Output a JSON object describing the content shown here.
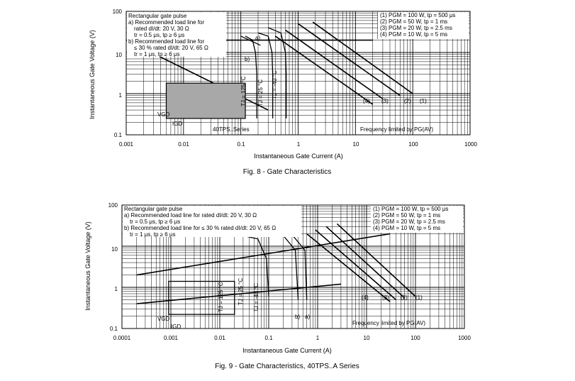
{
  "charts": [
    {
      "caption": "Fig. 8 - Gate Characteristics",
      "xlabel": "Instantaneous Gate Current (A)",
      "ylabel": "Instantaneous Gate Voltage (V)",
      "x_ticks": [
        "0.001",
        "0.01",
        "0.1",
        "1",
        "10",
        "100",
        "1000"
      ],
      "y_ticks": [
        "100",
        "10",
        "1",
        "0.1"
      ],
      "notes": [
        "Rectangular gate pulse",
        "a) Recommended load line for",
        "rated dI/dt: 20 V, 30 Ω",
        "tr = 0.5 μs, tp ≥ 6 μs",
        "b) Recommended load line for",
        "≤ 30 % rated dI/dt: 20 V, 65 Ω",
        "tr = 1 μs, tp ≥ 6 μs"
      ],
      "legend": [
        "(1) PGM = 100 W, tp = 500 μs",
        "(2) PGM = 50 W, tp = 1 ms",
        "(3) PGM = 20 W, tp = 2.5 ms",
        "(4) PGM = 10 W, tp = 5 ms"
      ],
      "labels": {
        "a": "a)",
        "b": "b)",
        "tj1": "TJ = 125 °C",
        "tj2": "TJ = 25 °C",
        "tj3": "TJ = -40 °C",
        "vgd": "VGD",
        "igd": "IGD",
        "series": "40TPS..Series",
        "freq": "Frequency limited by PG(AV)",
        "p1": "(1)",
        "p2": "(2)",
        "p3": "(3)",
        "p4": "(4)"
      }
    },
    {
      "caption": "Fig. 9 - Gate Characteristics, 40TPS..A Series",
      "xlabel": "Instantaneous Gate Current (A)",
      "ylabel": "Instantaneous Gate Voltage (V)",
      "x_ticks": [
        "0.0001",
        "0.001",
        "0.01",
        "0.1",
        "1",
        "10",
        "100",
        "1000"
      ],
      "y_ticks": [
        "100",
        "10",
        "1",
        "0.1"
      ],
      "notes": [
        "Rectangular gate pulse",
        "a) Recommended load line for rated dI/dt: 20 V, 30 Ω",
        "tr = 0.5 μs, tp ≥ 6 μs",
        "b) Recommended load line for ≤ 30 % rated dI/dt: 20 V, 65 Ω",
        "tr = 1 μs, tp ≥ 6 μs"
      ],
      "legend": [
        "(1) PGM = 100 W, tp = 500 μs",
        "(2) PGM = 50 W, tp = 1 ms",
        "(3) PGM = 20 W, tp = 2.5 ms",
        "(4) PGM = 10 W, tp = 5 ms"
      ],
      "labels": {
        "a": "a)",
        "b": "b)",
        "tj1": "TJ = 125 °C",
        "tj2": "TJ = 25 °C",
        "tj3": "TJ = -40 °C",
        "vgd": "VGD",
        "igd": "IGD",
        "freq": "Frequency limited by PG(AV)",
        "p1": "(1)",
        "p2": "(2)",
        "p3": "(3)",
        "p4": "(4)"
      }
    }
  ],
  "chart_data": [
    {
      "type": "line",
      "title": "Fig. 8 - Gate Characteristics",
      "xlabel": "Instantaneous Gate Current (A)",
      "ylabel": "Instantaneous Gate Voltage (V)",
      "xscale": "log",
      "yscale": "log",
      "xlim": [
        0.001,
        1000
      ],
      "ylim": [
        0.1,
        100
      ],
      "series": [
        {
          "name": "a)",
          "x": [
            0.001,
            20
          ],
          "y": [
            20,
            20
          ]
        },
        {
          "name": "b)",
          "x": [
            0.001,
            0.3
          ],
          "y": [
            20,
            0.4
          ]
        },
        {
          "name": "(1)",
          "x": [
            1.8,
            100
          ],
          "y": [
            55,
            1
          ]
        },
        {
          "name": "(2)",
          "x": [
            1.0,
            60
          ],
          "y": [
            50,
            0.9
          ]
        },
        {
          "name": "(3)",
          "x": [
            0.6,
            30
          ],
          "y": [
            35,
            0.75
          ]
        },
        {
          "name": "(4)",
          "x": [
            0.4,
            20
          ],
          "y": [
            25,
            0.55
          ]
        }
      ]
    },
    {
      "type": "line",
      "title": "Fig. 9 - Gate Characteristics, 40TPS..A Series",
      "xlabel": "Instantaneous Gate Current (A)",
      "ylabel": "Instantaneous Gate Voltage (V)",
      "xscale": "log",
      "yscale": "log",
      "xlim": [
        0.0001,
        1000
      ],
      "ylim": [
        0.1,
        100
      ],
      "series": [
        {
          "name": "a)",
          "x": [
            0.0002,
            30
          ],
          "y": [
            2.0,
            20
          ]
        },
        {
          "name": "b)",
          "x": [
            0.0002,
            3
          ],
          "y": [
            0.4,
            1.2
          ]
        },
        {
          "name": "(1)",
          "x": [
            2.5,
            100
          ],
          "y": [
            35,
            0.6
          ]
        },
        {
          "name": "(2)",
          "x": [
            1.5,
            60
          ],
          "y": [
            30,
            0.55
          ]
        },
        {
          "name": "(3)",
          "x": [
            0.9,
            40
          ],
          "y": [
            25,
            0.5
          ]
        },
        {
          "name": "(4)",
          "x": [
            0.6,
            30
          ],
          "y": [
            20,
            0.45
          ]
        }
      ]
    }
  ]
}
